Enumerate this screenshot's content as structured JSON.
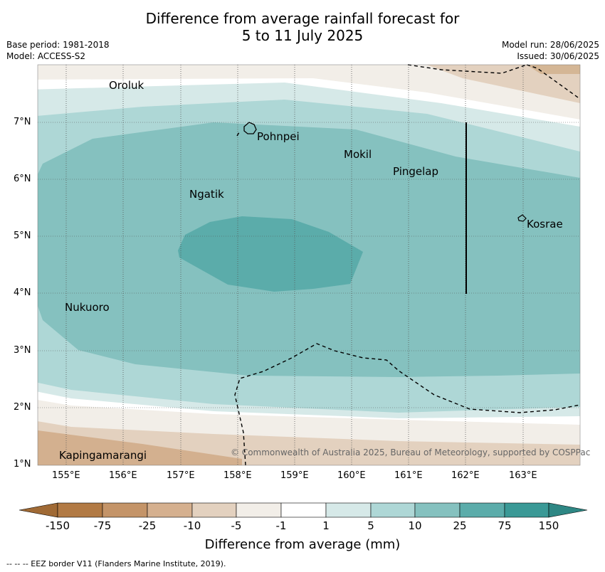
{
  "title": {
    "line1": "Difference from average rainfall forecast for",
    "line2": "5 to 11 July 2025"
  },
  "meta": {
    "base_period": "Base period: 1981-2018",
    "model": "Model: ACCESS-S2",
    "model_run": "Model run: 28/06/2025",
    "issued": "Issued: 30/06/2025"
  },
  "map": {
    "lon_ticks": [
      "155°E",
      "156°E",
      "157°E",
      "158°E",
      "159°E",
      "160°E",
      "161°E",
      "162°E",
      "163°E"
    ],
    "lat_ticks": [
      "7°N",
      "6°N",
      "5°N",
      "4°N",
      "3°N",
      "2°N",
      "1°N"
    ],
    "places": [
      {
        "name": "Oroluk"
      },
      {
        "name": "Pohnpei"
      },
      {
        "name": "Mokil"
      },
      {
        "name": "Pingelap"
      },
      {
        "name": "Ngatik"
      },
      {
        "name": "Kosrae"
      },
      {
        "name": "Nukuoro"
      },
      {
        "name": "Kapingamarangi"
      }
    ],
    "copyright": "© Commonwealth of Australia 2025, Bureau of Meteorology, supported by COSPPac"
  },
  "colorbar": {
    "labels": [
      "-150",
      "-75",
      "-25",
      "-10",
      "-5",
      "-1",
      "1",
      "5",
      "10",
      "25",
      "75",
      "150"
    ],
    "colors": [
      "#a06a35",
      "#b27a44",
      "#c49468",
      "#d5b08f",
      "#e3d1bf",
      "#f2eee8",
      "#ffffff",
      "#d6e9e8",
      "#aed7d6",
      "#85c1bf",
      "#5bacaa",
      "#3a9996",
      "#2e8784"
    ],
    "title": "Difference from average (mm)"
  },
  "footnote": "--  --  -- EEZ border V11 (Flanders Marine Institute, 2019)."
}
